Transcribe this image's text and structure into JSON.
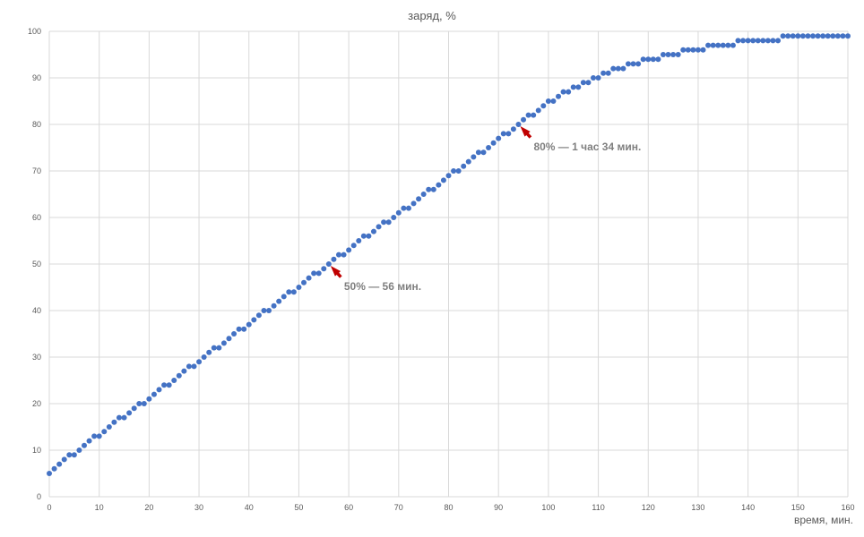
{
  "chart_data": {
    "type": "scatter",
    "title": "заряд, %",
    "xlabel": "время, мин.",
    "ylabel": "",
    "xlim": [
      0,
      160
    ],
    "ylim": [
      0,
      100
    ],
    "x_ticks": [
      0,
      10,
      20,
      30,
      40,
      50,
      60,
      70,
      80,
      90,
      100,
      110,
      120,
      130,
      140,
      150,
      160
    ],
    "y_ticks": [
      0,
      10,
      20,
      30,
      40,
      50,
      60,
      70,
      80,
      90,
      100
    ],
    "grid": true,
    "legend": "none",
    "colors": {
      "marker": "#4472c4",
      "arrow": "#c00000",
      "grid": "#d9d9d9",
      "text": "#595959",
      "annotation": "#7f7f7f"
    },
    "series": [
      {
        "x": [
          0,
          1,
          2,
          3,
          4,
          5,
          6,
          7,
          8,
          9,
          10,
          11,
          12,
          13,
          14,
          15,
          16,
          17,
          18,
          19,
          20,
          21,
          22,
          23,
          24,
          25,
          26,
          27,
          28,
          29,
          30,
          31,
          32,
          33,
          34,
          35,
          36,
          37,
          38,
          39,
          40,
          41,
          42,
          43,
          44,
          45,
          46,
          47,
          48,
          49,
          50,
          51,
          52,
          53,
          54,
          55,
          56,
          57,
          58,
          59,
          60,
          61,
          62,
          63,
          64,
          65,
          66,
          67,
          68,
          69,
          70,
          71,
          72,
          73,
          74,
          75,
          76,
          77,
          78,
          79,
          80,
          81,
          82,
          83,
          84,
          85,
          86,
          87,
          88,
          89,
          90,
          91,
          92,
          93,
          94,
          95,
          96,
          97,
          98,
          99,
          100,
          101,
          102,
          103,
          104,
          105,
          106,
          107,
          108,
          109,
          110,
          111,
          112,
          113,
          114,
          115,
          116,
          117,
          118,
          119,
          120,
          121,
          122,
          123,
          124,
          125,
          126,
          127,
          128,
          129,
          130,
          131,
          132,
          133,
          134,
          135,
          136,
          137,
          138,
          139,
          140,
          141,
          142,
          143,
          144,
          145,
          146,
          147,
          148,
          149,
          150,
          151,
          152,
          153,
          154,
          155,
          156,
          157,
          158,
          159,
          160
        ],
        "y": [
          5,
          6,
          7,
          8,
          9,
          9,
          10,
          11,
          12,
          13,
          13,
          14,
          15,
          16,
          17,
          17,
          18,
          19,
          20,
          20,
          21,
          22,
          23,
          24,
          24,
          25,
          26,
          27,
          28,
          28,
          29,
          30,
          31,
          32,
          32,
          33,
          34,
          35,
          36,
          36,
          37,
          38,
          39,
          40,
          40,
          41,
          42,
          43,
          44,
          44,
          45,
          46,
          47,
          48,
          48,
          49,
          50,
          51,
          52,
          52,
          53,
          54,
          55,
          56,
          56,
          57,
          58,
          59,
          59,
          60,
          61,
          62,
          62,
          63,
          64,
          65,
          66,
          66,
          67,
          68,
          69,
          70,
          70,
          71,
          72,
          73,
          74,
          74,
          75,
          76,
          77,
          78,
          78,
          79,
          80,
          81,
          82,
          82,
          83,
          84,
          85,
          85,
          86,
          87,
          87,
          88,
          88,
          89,
          89,
          90,
          90,
          91,
          91,
          92,
          92,
          92,
          93,
          93,
          93,
          94,
          94,
          94,
          94,
          95,
          95,
          95,
          95,
          96,
          96,
          96,
          96,
          96,
          97,
          97,
          97,
          97,
          97,
          97,
          98,
          98,
          98,
          98,
          98,
          98,
          98,
          98,
          98,
          99,
          99,
          99,
          99,
          99,
          99,
          99,
          99,
          99,
          99,
          99,
          99,
          99,
          99
        ]
      }
    ],
    "annotations": [
      {
        "text": "50% — 56 мин.",
        "x": 56,
        "y": 50
      },
      {
        "text": "80% — 1 час 34 мин.",
        "x": 94,
        "y": 80
      }
    ]
  }
}
